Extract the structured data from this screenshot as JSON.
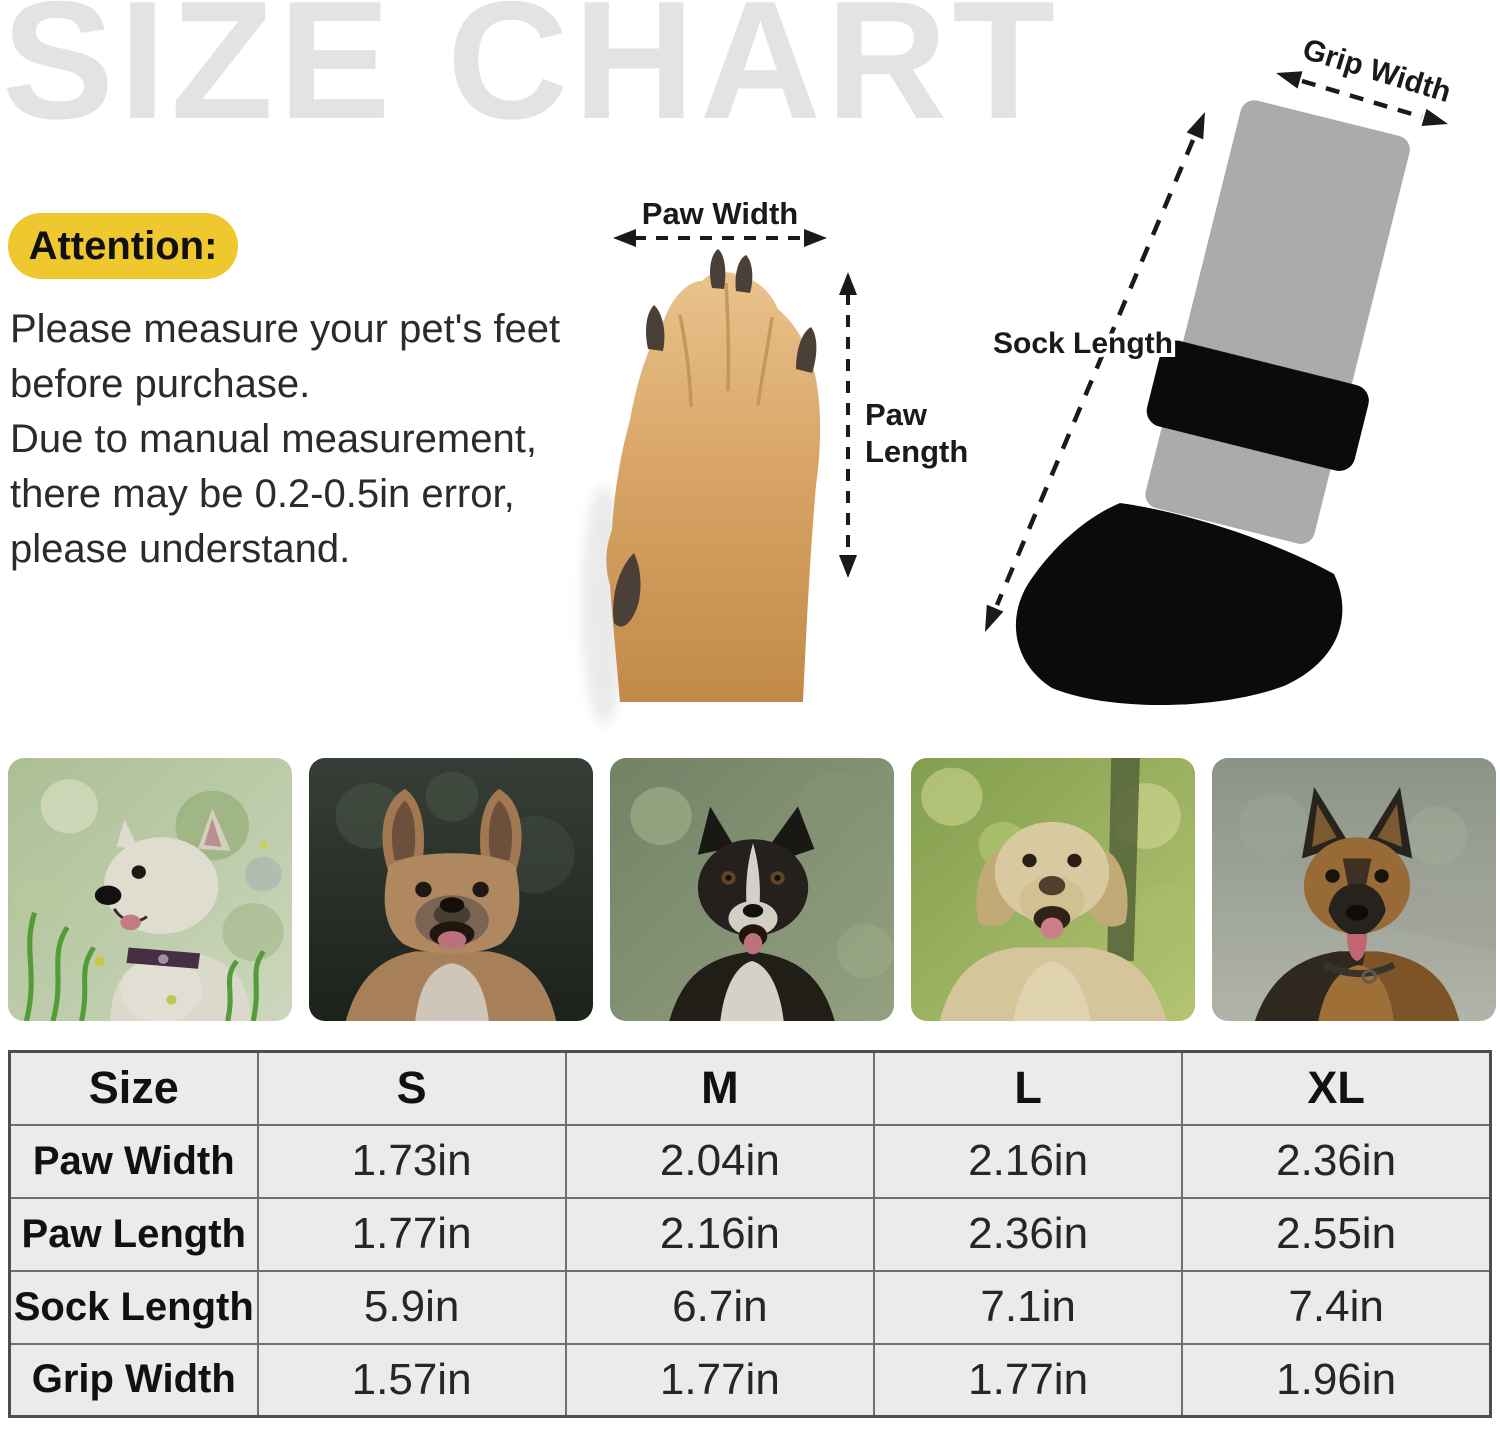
{
  "title": "SIZE CHART",
  "attention": {
    "label": "Attention:",
    "note": "Please measure your pet's feet\nbefore purchase.\nDue to manual measurement,\nthere may be 0.2-0.5in error,\nplease understand."
  },
  "paw_diagram": {
    "width_label": "Paw Width",
    "length_label_line1": "Paw",
    "length_label_line2": "Length"
  },
  "sock_diagram": {
    "grip_width_label": "Grip Width",
    "sock_length_label": "Sock Length"
  },
  "dog_photos": [
    "west-highland-white-terrier",
    "french-bulldog",
    "border-collie",
    "labrador-retriever",
    "german-shepherd"
  ],
  "size_table": {
    "columns": [
      "Size",
      "S",
      "M",
      "L",
      "XL"
    ],
    "rows": [
      {
        "label": "Paw Width",
        "values": [
          "1.73in",
          "2.04in",
          "2.16in",
          "2.36in"
        ]
      },
      {
        "label": "Paw Length",
        "values": [
          "1.77in",
          "2.16in",
          "2.36in",
          "2.55in"
        ]
      },
      {
        "label": "Sock Length",
        "values": [
          "5.9in",
          "6.7in",
          "7.1in",
          "7.4in"
        ]
      },
      {
        "label": "Grip Width",
        "values": [
          "1.57in",
          "1.77in",
          "1.77in",
          "1.96in"
        ]
      }
    ]
  },
  "colors": {
    "title_gray": "#e3e3e3",
    "attention_yellow": "#efc72f",
    "table_cell_bg": "#ebebeb",
    "table_border": "#6f6f6f",
    "sock_gray": "#ababab",
    "sock_black": "#0b0b0b",
    "paw_tan": "#d8a566"
  },
  "chart_data": {
    "type": "table",
    "title": "SIZE CHART",
    "columns": [
      "Size",
      "S",
      "M",
      "L",
      "XL"
    ],
    "rows": [
      [
        "Paw Width",
        "1.73in",
        "2.04in",
        "2.16in",
        "2.36in"
      ],
      [
        "Paw Length",
        "1.77in",
        "2.16in",
        "2.36in",
        "2.55in"
      ],
      [
        "Sock Length",
        "5.9in",
        "6.7in",
        "7.1in",
        "7.4in"
      ],
      [
        "Grip Width",
        "1.57in",
        "1.77in",
        "1.77in",
        "1.96in"
      ]
    ]
  }
}
